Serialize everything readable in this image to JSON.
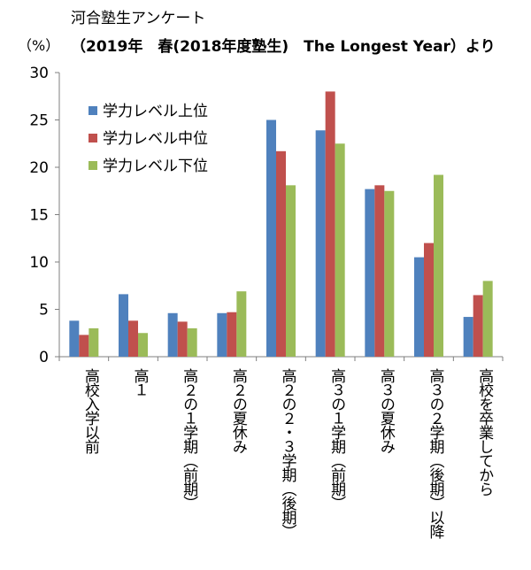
{
  "chart_data": {
    "type": "bar",
    "title": "河合塾生アンケート",
    "subtitle": "（2019年　春(2018年度塾生)　The Longest Year）より",
    "ylabel": "（%）",
    "xlabel": "",
    "ylim": [
      0,
      30
    ],
    "yticks": [
      0,
      5,
      10,
      15,
      20,
      25,
      30
    ],
    "grid": false,
    "legend_position": "top-left",
    "categories": [
      "高校入学以前",
      "高１",
      "高２の１学期（前期）",
      "高２の夏休み",
      "高２の２・３学期（後期）",
      "高３の１学期（前期）",
      "高３の夏休み",
      "高３の２学期（後期）以降",
      "高校を卒業してから"
    ],
    "series": [
      {
        "name": "学力レベル上位",
        "color": "#4F81BD",
        "values": [
          3.8,
          6.6,
          4.6,
          4.6,
          25.0,
          23.9,
          17.7,
          10.5,
          4.2
        ]
      },
      {
        "name": "学力レベル中位",
        "color": "#C0504D",
        "values": [
          2.3,
          3.8,
          3.7,
          4.7,
          21.7,
          28.0,
          18.1,
          12.0,
          6.5
        ]
      },
      {
        "name": "学力レベル下位",
        "color": "#9BBB59",
        "values": [
          3.0,
          2.5,
          3.0,
          6.9,
          18.1,
          22.5,
          17.5,
          19.2,
          8.0
        ]
      }
    ]
  }
}
